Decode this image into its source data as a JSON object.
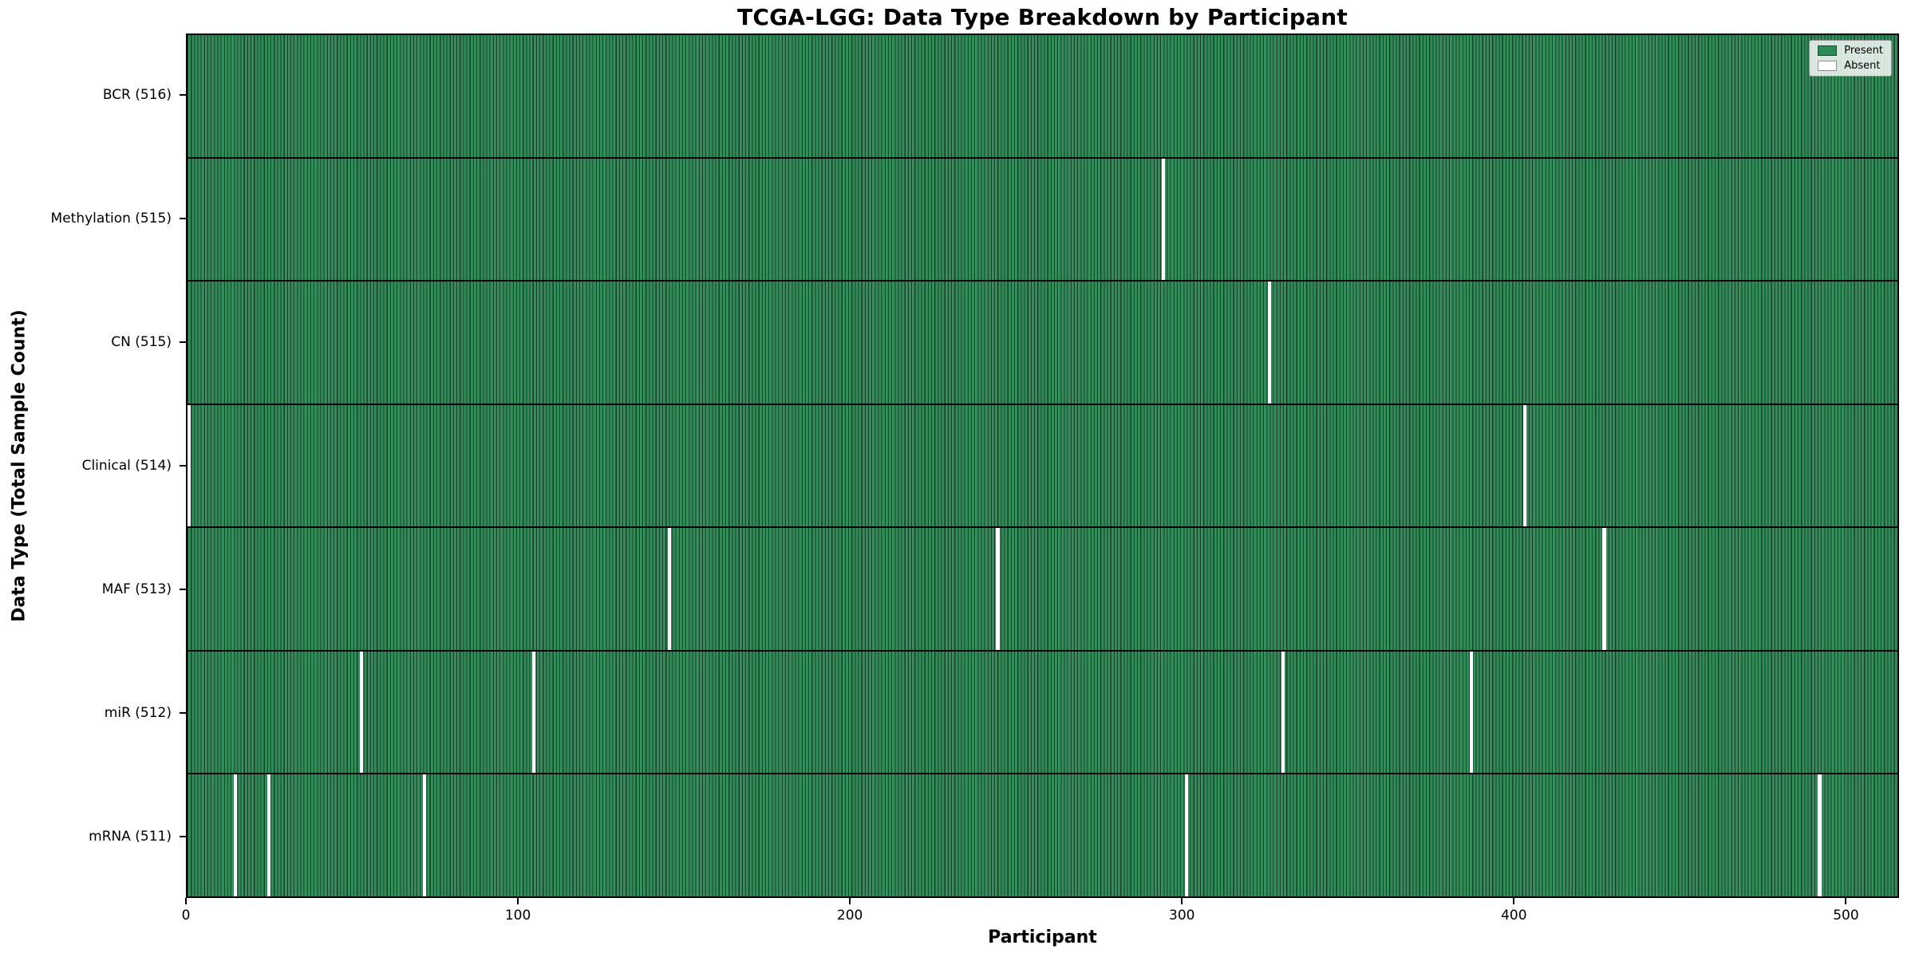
{
  "chart_data": {
    "type": "heatmap",
    "title": "TCGA-LGG: Data Type Breakdown by Participant",
    "xlabel": "Participant",
    "ylabel": "Data Type (Total Sample Count)",
    "total_participants": 516,
    "x_ticks": [
      0,
      100,
      200,
      300,
      400,
      500
    ],
    "x_tick_labels": [
      "0",
      "100",
      "200",
      "300",
      "400",
      "500"
    ],
    "x_range": [
      0,
      516
    ],
    "grid": false,
    "legend": {
      "position": "upper right",
      "entries": [
        {
          "label": "Present",
          "color": "#2e8b57"
        },
        {
          "label": "Absent",
          "color": "#ffffff"
        }
      ]
    },
    "colors": {
      "present": "#2e8b57",
      "absent": "#ffffff",
      "cell_edge": "#1b4d33",
      "spine": "#000000"
    },
    "rows": [
      {
        "label": "BCR (516)",
        "data_type": "BCR",
        "present_count": 516,
        "absent_participants": []
      },
      {
        "label": "Methylation (515)",
        "data_type": "Methylation",
        "present_count": 515,
        "absent_participants": [
          294
        ]
      },
      {
        "label": "CN (515)",
        "data_type": "CN",
        "present_count": 515,
        "absent_participants": [
          326
        ]
      },
      {
        "label": "Clinical (514)",
        "data_type": "Clinical",
        "present_count": 514,
        "absent_participants": [
          0,
          403
        ]
      },
      {
        "label": "MAF (513)",
        "data_type": "MAF",
        "present_count": 513,
        "absent_participants": [
          145,
          244,
          427
        ]
      },
      {
        "label": "miR (512)",
        "data_type": "miR",
        "present_count": 512,
        "absent_participants": [
          52,
          104,
          330,
          387
        ]
      },
      {
        "label": "mRNA (511)",
        "data_type": "mRNA",
        "present_count": 511,
        "absent_participants": [
          14,
          24,
          71,
          301,
          492
        ]
      }
    ]
  }
}
